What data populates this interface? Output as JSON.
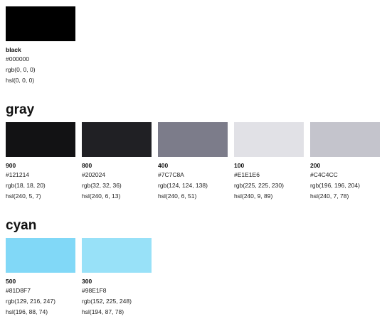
{
  "groups": [
    {
      "title": "",
      "colors": [
        {
          "name": "black",
          "hex": "#000000",
          "rgb": "rgb(0, 0, 0)",
          "hsl": "hsl(0, 0, 0)",
          "swatch": "#000000"
        }
      ]
    },
    {
      "title": "gray",
      "colors": [
        {
          "name": "900",
          "hex": "#121214",
          "rgb": "rgb(18, 18, 20)",
          "hsl": "hsl(240, 5, 7)",
          "swatch": "#121214"
        },
        {
          "name": "800",
          "hex": "#202024",
          "rgb": "rgb(32, 32, 36)",
          "hsl": "hsl(240, 6, 13)",
          "swatch": "#202024"
        },
        {
          "name": "400",
          "hex": "#7C7C8A",
          "rgb": "rgb(124, 124, 138)",
          "hsl": "hsl(240, 6, 51)",
          "swatch": "#7C7C8A"
        },
        {
          "name": "100",
          "hex": "#E1E1E6",
          "rgb": "rgb(225, 225, 230)",
          "hsl": "hsl(240, 9, 89)",
          "swatch": "#E1E1E6"
        },
        {
          "name": "200",
          "hex": "#C4C4CC",
          "rgb": "rgb(196, 196, 204)",
          "hsl": "hsl(240, 7, 78)",
          "swatch": "#C4C4CC"
        }
      ]
    },
    {
      "title": "cyan",
      "colors": [
        {
          "name": "500",
          "hex": "#81D8F7",
          "rgb": "rgb(129, 216, 247)",
          "hsl": "hsl(196, 88, 74)",
          "swatch": "#81D8F7"
        },
        {
          "name": "300",
          "hex": "#98E1F8",
          "rgb": "rgb(152, 225, 248)",
          "hsl": "hsl(194, 87, 78)",
          "swatch": "#98E1F8"
        }
      ]
    }
  ]
}
